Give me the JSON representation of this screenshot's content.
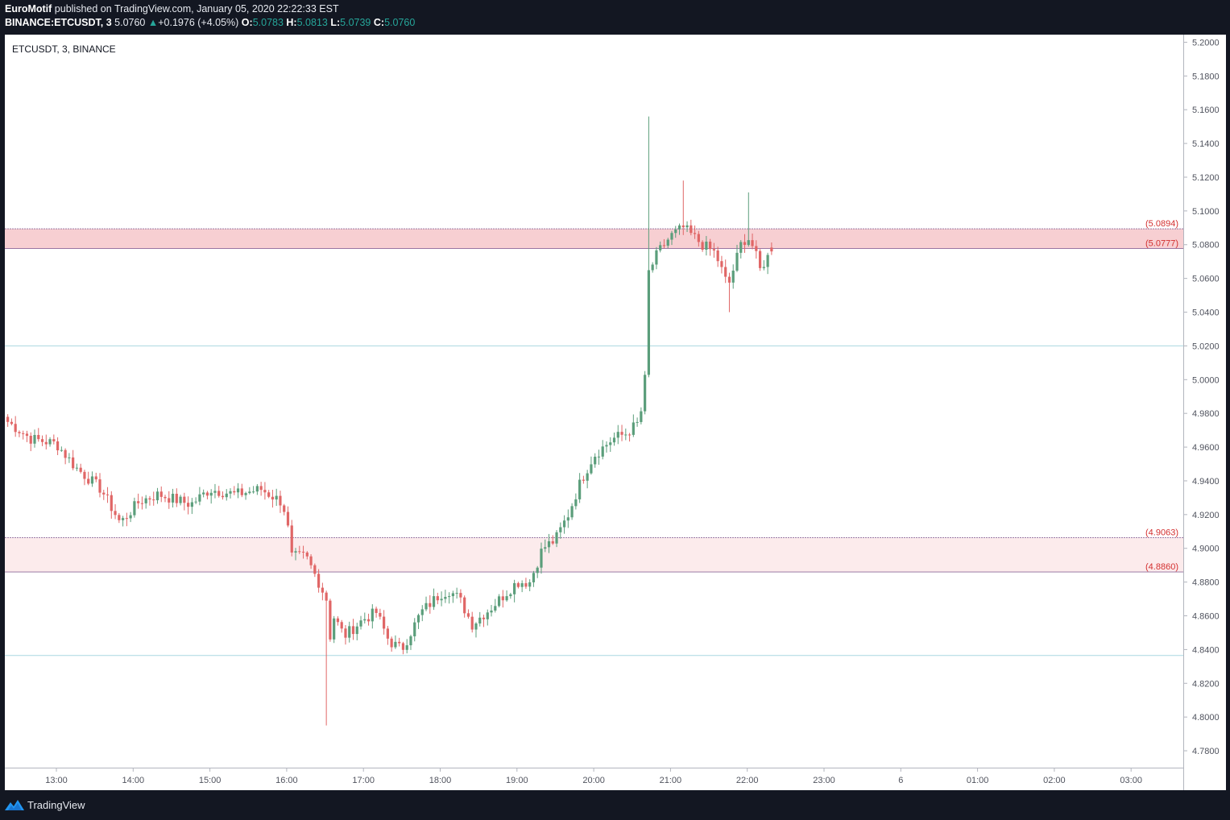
{
  "header": {
    "author": "EuroMotif",
    "published_text": " published on TradingView.com, January 05, 2020 22:22:33 EST",
    "symbol": "BINANCE:ETCUSDT, 3",
    "last": "5.0760",
    "change": "+0.1976 (+4.05%)",
    "o_label": "O:",
    "o": "5.0783",
    "h_label": "H:",
    "h": "5.0813",
    "l_label": "L:",
    "l": "5.0739",
    "c_label": "C:",
    "c": "5.0760"
  },
  "footer": {
    "brand": "TradingView"
  },
  "colors": {
    "up": "#26a69a",
    "down": "#ef5350",
    "candle_up": "#5b9e7b",
    "candle_down": "#e06666",
    "zone_fill": "#f7cfd2",
    "zone_fill_light": "#fcebec",
    "zone_line": "#8e6a9a",
    "support_line": "#a9d7e0",
    "label_red": "#d32f2f",
    "axis_text": "#50535e"
  },
  "chart_data": {
    "type": "candlestick",
    "title": "ETCUSDT, 3, BINANCE",
    "ylim": [
      4.77,
      5.2045
    ],
    "y_ticks": [
      "5.2000",
      "5.1800",
      "5.1600",
      "5.1400",
      "5.1200",
      "5.1000",
      "5.0800",
      "5.0600",
      "5.0400",
      "5.0200",
      "5.0000",
      "4.9800",
      "4.9600",
      "4.9400",
      "4.9200",
      "4.9000",
      "4.8800",
      "4.8600",
      "4.8400",
      "4.8200",
      "4.8000",
      "4.7800"
    ],
    "x_ticks": [
      "13:00",
      "14:00",
      "15:00",
      "16:00",
      "17:00",
      "18:00",
      "19:00",
      "20:00",
      "21:00",
      "22:00",
      "23:00",
      "6",
      "01:00",
      "02:00",
      "03:00"
    ],
    "zones": [
      {
        "top": 5.0894,
        "bottom": 5.0777,
        "top_label": "(5.0894)",
        "bottom_label": "(5.0777)",
        "shade": "strong"
      },
      {
        "top": 4.9063,
        "bottom": 4.886,
        "top_label": "(4.9063)",
        "bottom_label": "(4.8860)",
        "shade": "light"
      }
    ],
    "support_lines": [
      5.02,
      4.8365
    ],
    "anchors": [
      [
        "12:22",
        4.975
      ],
      [
        "12:40",
        4.965
      ],
      [
        "13:00",
        4.962
      ],
      [
        "13:15",
        4.948
      ],
      [
        "13:35",
        4.935
      ],
      [
        "13:50",
        4.915
      ],
      [
        "14:05",
        4.928
      ],
      [
        "14:20",
        4.932
      ],
      [
        "14:45",
        4.926
      ],
      [
        "15:00",
        4.935
      ],
      [
        "15:20",
        4.932
      ],
      [
        "15:40",
        4.935
      ],
      [
        "15:55",
        4.928
      ],
      [
        "16:00",
        4.92
      ],
      [
        "16:03",
        4.895
      ],
      [
        "16:15",
        4.895
      ],
      [
        "16:25",
        4.88
      ],
      [
        "16:31",
        4.87
      ],
      [
        "16:32",
        4.82
      ],
      [
        "16:35",
        4.862
      ],
      [
        "16:45",
        4.848
      ],
      [
        "17:00",
        4.858
      ],
      [
        "17:10",
        4.862
      ],
      [
        "17:20",
        4.845
      ],
      [
        "17:30",
        4.84
      ],
      [
        "17:45",
        4.862
      ],
      [
        "18:00",
        4.873
      ],
      [
        "18:07",
        4.875
      ],
      [
        "18:15",
        4.87
      ],
      [
        "18:25",
        4.855
      ],
      [
        "18:40",
        4.865
      ],
      [
        "19:00",
        4.88
      ],
      [
        "19:10",
        4.88
      ],
      [
        "19:20",
        4.9
      ],
      [
        "19:30",
        4.905
      ],
      [
        "19:40",
        4.92
      ],
      [
        "19:50",
        4.94
      ],
      [
        "20:00",
        4.955
      ],
      [
        "20:15",
        4.965
      ],
      [
        "20:25",
        4.968
      ],
      [
        "20:36",
        4.975
      ],
      [
        "20:40",
        5.0
      ],
      [
        "20:42",
        5.062
      ],
      [
        "20:50",
        5.075
      ],
      [
        "21:00",
        5.085
      ],
      [
        "21:10",
        5.09
      ],
      [
        "21:25",
        5.08
      ],
      [
        "21:35",
        5.075
      ],
      [
        "21:45",
        5.055
      ],
      [
        "21:55",
        5.08
      ],
      [
        "22:00",
        5.085
      ],
      [
        "22:05",
        5.078
      ],
      [
        "22:10",
        5.065
      ],
      [
        "22:15",
        5.072
      ],
      [
        "22:21",
        5.076
      ]
    ],
    "extremes": [
      [
        "16:31",
        4.795
      ],
      [
        "20:42",
        5.156
      ],
      [
        "21:10",
        5.118
      ],
      [
        "22:00",
        5.111
      ],
      [
        "21:45",
        5.04
      ]
    ],
    "last_bar": {
      "open": 5.0783,
      "high": 5.0813,
      "low": 5.0739,
      "close": 5.076
    }
  }
}
